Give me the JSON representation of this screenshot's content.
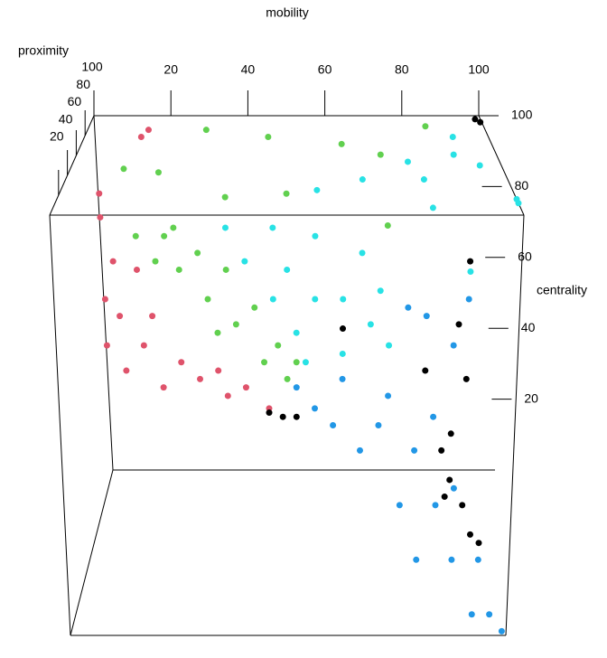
{
  "chart_data": {
    "type": "scatter3d",
    "x_label": "mobility",
    "y_label": "proximity",
    "z_label": "centrality",
    "xlim": [
      0,
      100
    ],
    "ylim": [
      0,
      100
    ],
    "zlim": [
      0,
      100
    ],
    "xticks": [
      20,
      40,
      60,
      80,
      100
    ],
    "yticks": [
      100,
      80,
      60,
      40,
      20
    ],
    "zticks": [
      100,
      80,
      60,
      40,
      20
    ],
    "series": [
      {
        "color": "#df536b",
        "x": [
          13,
          11,
          11,
          18,
          21,
          27,
          37,
          46,
          15,
          23,
          31,
          19,
          14,
          35,
          41,
          12,
          14,
          5,
          8
        ],
        "y": [
          0,
          0,
          0,
          0,
          0,
          0,
          0,
          0,
          0,
          0,
          0,
          0,
          0,
          0,
          0,
          100,
          100,
          60,
          30
        ],
        "z": [
          89,
          80,
          69,
          87,
          76,
          65,
          57,
          54,
          63,
          59,
          61,
          69,
          76,
          63,
          59,
          94,
          96,
          90,
          92
        ]
      },
      {
        "color": "#61d04f",
        "x": [
          18,
          24,
          27,
          33,
          39,
          45,
          50,
          26,
          37,
          43,
          48,
          52,
          31,
          22,
          35,
          16,
          33,
          45,
          64,
          74,
          86,
          75,
          7,
          29,
          49
        ],
        "y": [
          0,
          0,
          0,
          0,
          0,
          0,
          0,
          0,
          0,
          0,
          0,
          0,
          0,
          0,
          0,
          100,
          100,
          100,
          100,
          100,
          100,
          100,
          100,
          100,
          100
        ],
        "z": [
          95,
          95,
          87,
          80,
          74,
          65,
          61,
          97,
          87,
          78,
          69,
          65,
          91,
          89,
          72,
          84,
          77,
          94,
          92,
          89,
          97,
          69,
          85,
          96,
          78
        ]
      },
      {
        "color": "#28e2e5",
        "x": [
          37,
          47,
          56,
          66,
          70,
          68,
          62,
          54,
          47,
          56,
          41,
          50,
          62,
          72,
          52,
          93,
          100,
          85,
          69,
          93,
          100,
          81,
          57,
          87,
          96,
          95
        ],
        "y": [
          0,
          0,
          0,
          0,
          0,
          0,
          0,
          0,
          0,
          0,
          0,
          0,
          0,
          0,
          0,
          100,
          16,
          100,
          100,
          100,
          12,
          100,
          100,
          100,
          100,
          50
        ],
        "z": [
          97,
          97,
          95,
          91,
          82,
          74,
          67,
          65,
          80,
          80,
          89,
          87,
          80,
          69,
          72,
          89,
          100,
          82,
          82,
          94,
          100,
          87,
          79,
          74,
          56,
          100
        ]
      },
      {
        "color": "#2297e6",
        "x": [
          52,
          62,
          72,
          66,
          78,
          75,
          83,
          87,
          93,
          96,
          99,
          60,
          70,
          87,
          79,
          92,
          56,
          82,
          80,
          86,
          89,
          76
        ],
        "y": [
          0,
          0,
          0,
          0,
          0,
          0,
          0,
          0,
          0,
          0,
          0,
          0,
          0,
          0,
          0,
          0,
          0,
          0,
          0,
          0,
          0,
          0
        ],
        "z": [
          59,
          61,
          57,
          44,
          44,
          31,
          31,
          18,
          18,
          5,
          1,
          50,
          50,
          35,
          18,
          5,
          54,
          52,
          76,
          69,
          80,
          78
        ]
      },
      {
        "color": "#000000",
        "x": [
          46,
          49,
          52,
          84,
          86,
          89,
          91,
          85,
          93,
          86,
          89,
          87,
          89,
          80,
          62,
          99,
          100
        ],
        "y": [
          0,
          0,
          0,
          0,
          0,
          0,
          0,
          0,
          0,
          0,
          0,
          0,
          0,
          0,
          0,
          100,
          97
        ],
        "z": [
          53,
          52,
          52,
          44,
          37,
          31,
          24,
          33,
          22,
          48,
          61,
          74,
          89,
          63,
          73,
          99,
          99
        ]
      }
    ]
  }
}
